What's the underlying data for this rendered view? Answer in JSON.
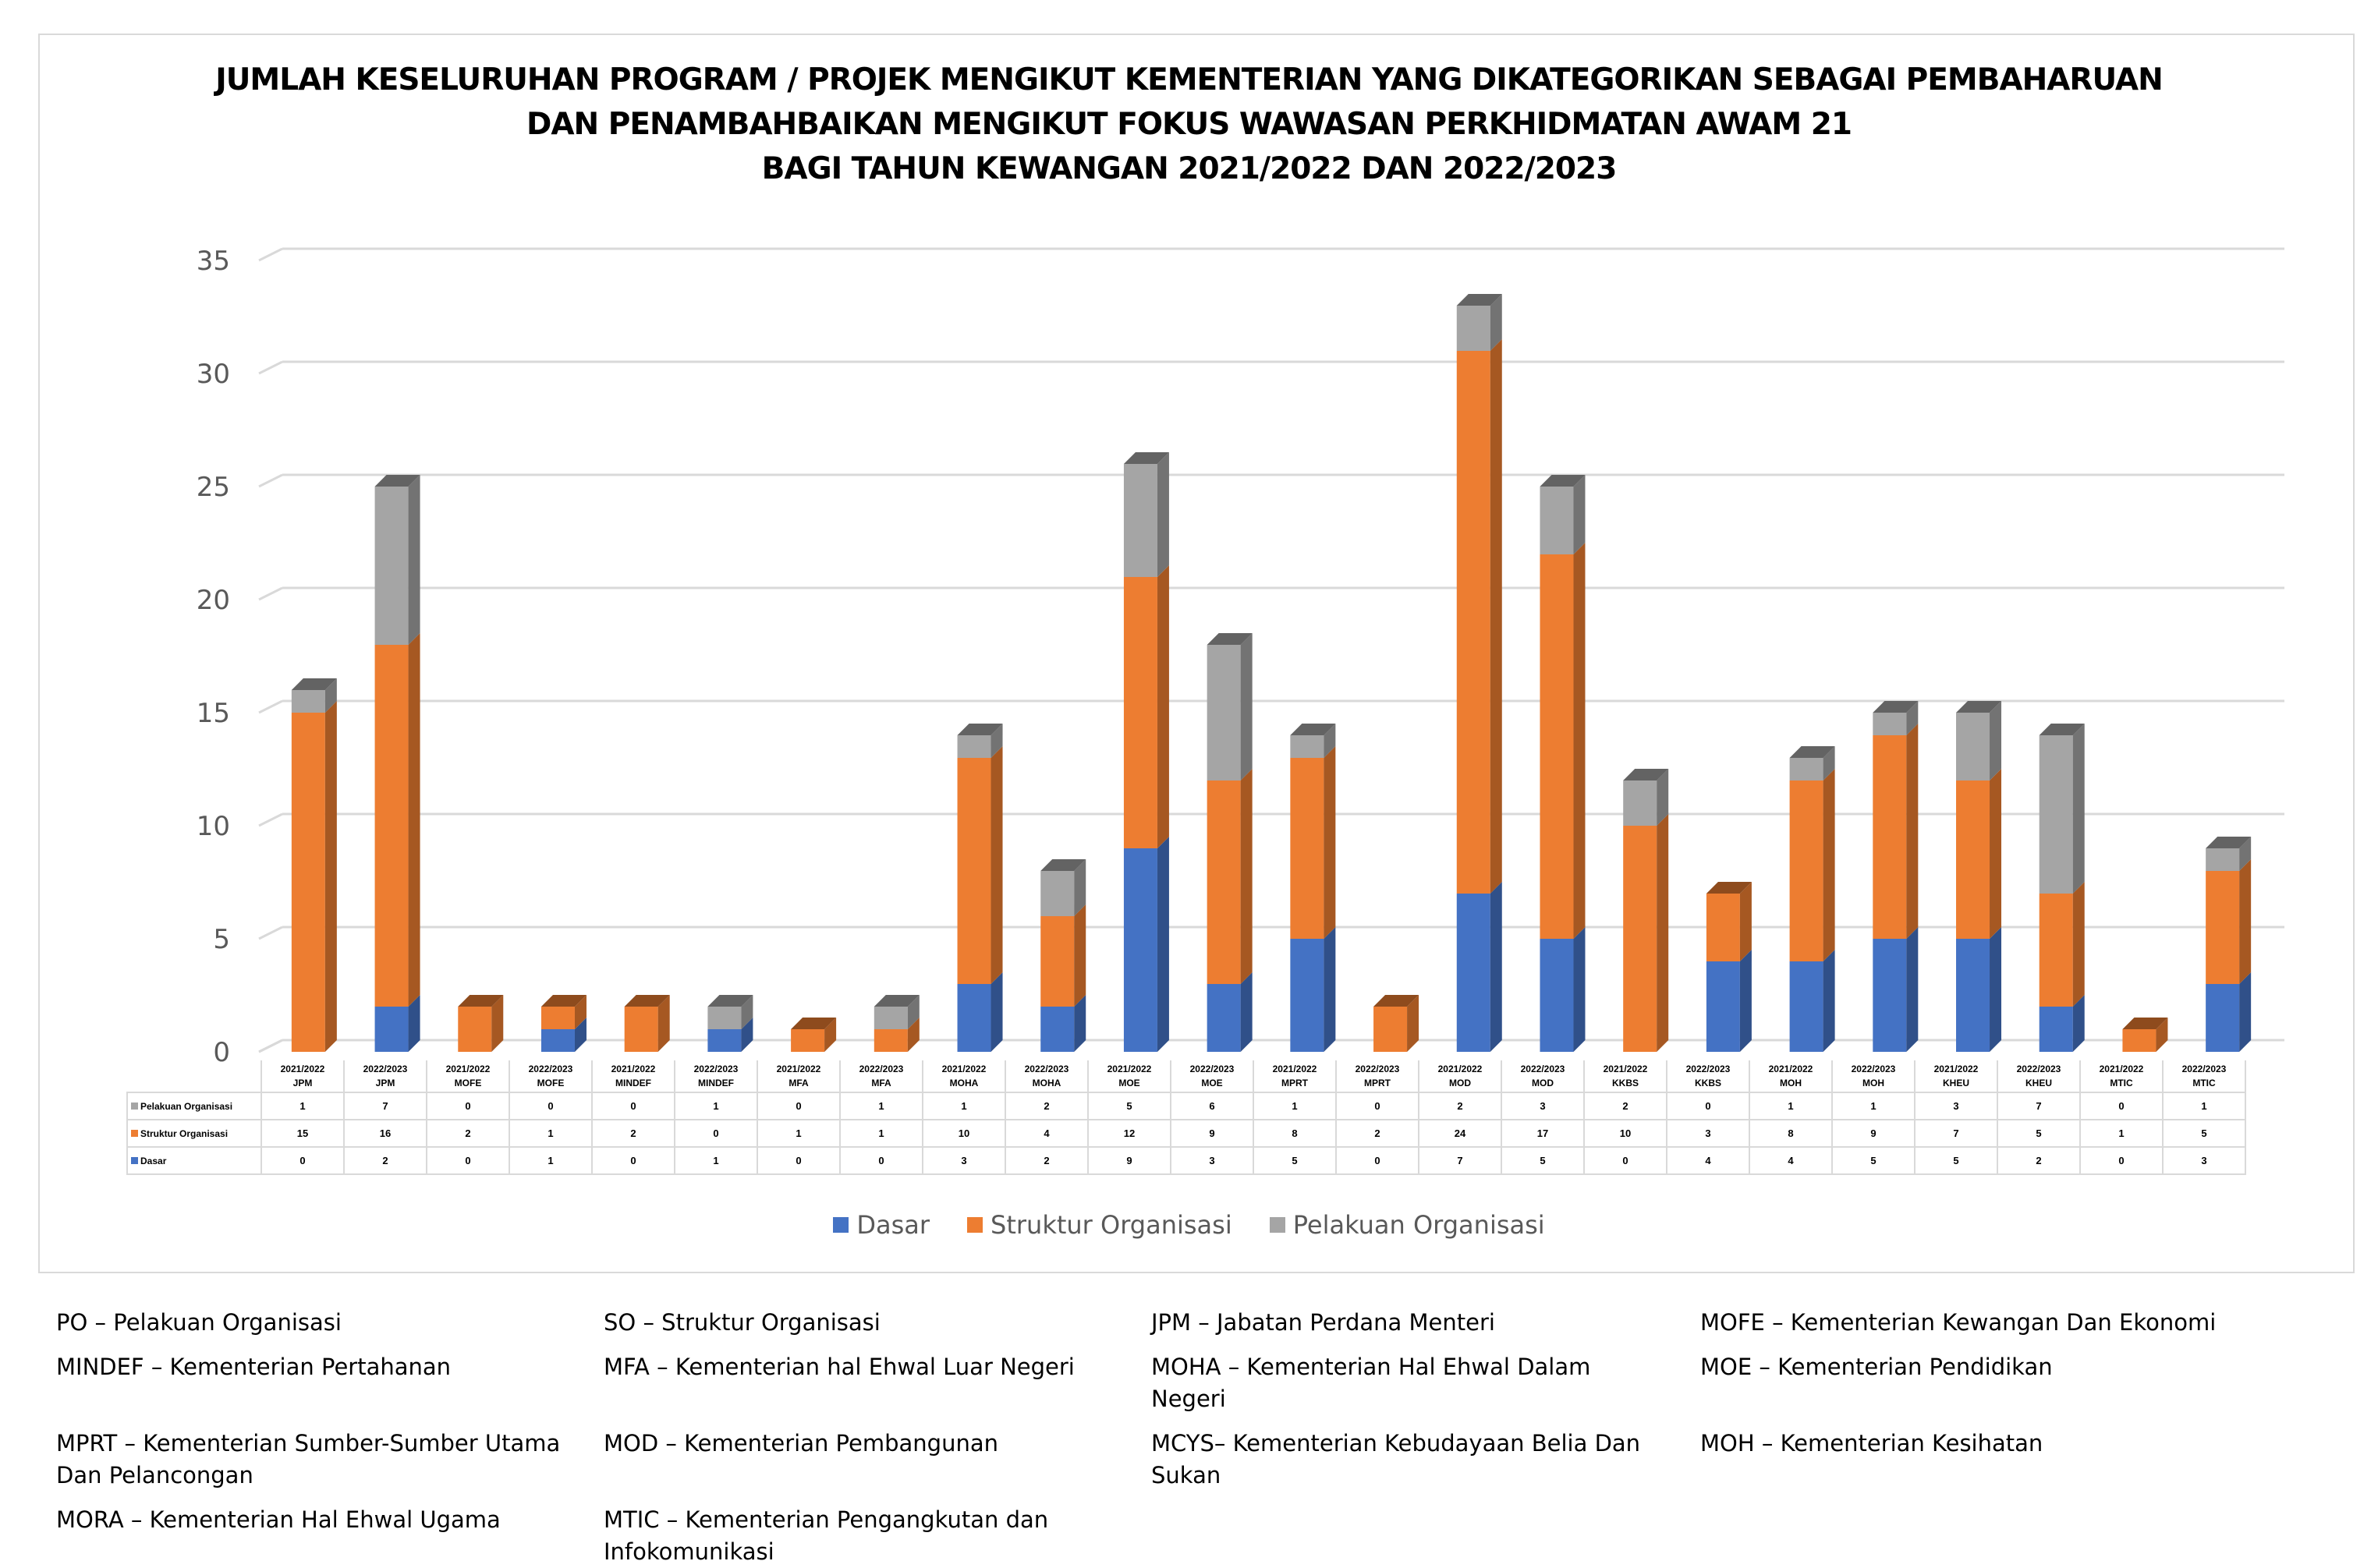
{
  "chart_data": {
    "type": "bar",
    "stacked": true,
    "title": [
      "JUMLAH KESELURUHAN PROGRAM / PROJEK MENGIKUT KEMENTERIAN YANG DIKATEGORIKAN SEBAGAI PEMBAHARUAN",
      "DAN PENAMBAHBAIKAN MENGIKUT FOKUS WAWASAN PERKHIDMATAN AWAM 21",
      "BAGI TAHUN KEWANGAN 2021/2022 DAN 2022/2023"
    ],
    "categories": [
      [
        "2021/2022",
        "JPM"
      ],
      [
        "2022/2023",
        "JPM"
      ],
      [
        "2021/2022",
        "MOFE"
      ],
      [
        "2022/2023",
        "MOFE"
      ],
      [
        "2021/2022",
        "MINDEF"
      ],
      [
        "2022/2023",
        "MINDEF"
      ],
      [
        "2021/2022",
        "MFA"
      ],
      [
        "2022/2023",
        "MFA"
      ],
      [
        "2021/2022",
        "MOHA"
      ],
      [
        "2022/2023",
        "MOHA"
      ],
      [
        "2021/2022",
        "MOE"
      ],
      [
        "2022/2023",
        "MOE"
      ],
      [
        "2021/2022",
        "MPRT"
      ],
      [
        "2022/2023",
        "MPRT"
      ],
      [
        "2021/2022",
        "MOD"
      ],
      [
        "2022/2023",
        "MOD"
      ],
      [
        "2021/2022",
        "KKBS"
      ],
      [
        "2022/2023",
        "KKBS"
      ],
      [
        "2021/2022",
        "MOH"
      ],
      [
        "2022/2023",
        "MOH"
      ],
      [
        "2021/2022",
        "KHEU"
      ],
      [
        "2022/2023",
        "KHEU"
      ],
      [
        "2021/2022",
        "MTIC"
      ],
      [
        "2022/2023",
        "MTIC"
      ]
    ],
    "series": [
      {
        "name": "Dasar",
        "color": "#4472c4",
        "values": [
          0,
          2,
          0,
          1,
          0,
          1,
          0,
          0,
          3,
          2,
          9,
          3,
          5,
          0,
          7,
          5,
          0,
          4,
          4,
          5,
          5,
          2,
          0,
          3
        ]
      },
      {
        "name": "Struktur Organisasi",
        "color": "#ed7d31",
        "values": [
          15,
          16,
          2,
          1,
          2,
          0,
          1,
          1,
          10,
          4,
          12,
          9,
          8,
          2,
          24,
          17,
          10,
          3,
          8,
          9,
          7,
          5,
          1,
          5
        ]
      },
      {
        "name": "Pelakuan Organisasi",
        "color": "#a5a5a5",
        "values": [
          1,
          7,
          0,
          0,
          0,
          1,
          0,
          1,
          1,
          2,
          5,
          6,
          1,
          0,
          2,
          3,
          2,
          0,
          1,
          1,
          3,
          7,
          0,
          1
        ]
      }
    ],
    "table_row_order": [
      "Pelakuan Organisasi",
      "Struktur Organisasi",
      "Dasar"
    ],
    "ylim": [
      0,
      35
    ],
    "yticks": [
      "0",
      "5",
      "10",
      "15",
      "20",
      "25",
      "30",
      "35"
    ],
    "grid": true,
    "legend": "bottom",
    "xlabel": "",
    "ylabel": ""
  },
  "notes": [
    "PO – Pelakuan Organisasi",
    "SO – Struktur Organisasi",
    "JPM – Jabatan Perdana Menteri",
    "MOFE – Kementerian Kewangan Dan Ekonomi",
    "MINDEF – Kementerian Pertahanan",
    "MFA – Kementerian hal Ehwal Luar Negeri",
    "MOHA – Kementerian Hal Ehwal Dalam Negeri",
    "MOE – Kementerian Pendidikan",
    "MPRT – Kementerian Sumber-Sumber Utama Dan Pelancongan",
    "MOD – Kementerian Pembangunan",
    "MCYS– Kementerian Kebudayaan Belia Dan Sukan",
    "MOH – Kementerian Kesihatan",
    "MORA – Kementerian Hal Ehwal Ugama",
    "MTIC – Kementerian Pengangkutan dan Infokomunikasi"
  ]
}
